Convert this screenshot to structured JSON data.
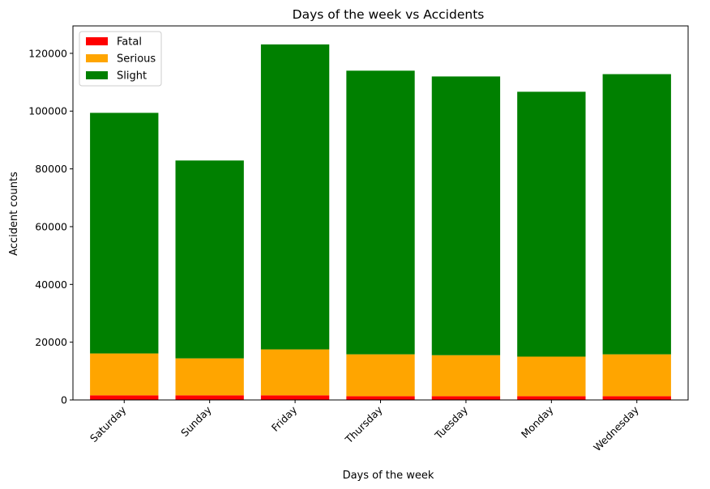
{
  "chart_data": {
    "type": "bar",
    "stacked": true,
    "title": "Days of the week vs Accidents",
    "xlabel": "Days of the week",
    "ylabel": "Accident counts",
    "categories": [
      "Saturday",
      "Sunday",
      "Friday",
      "Thursday",
      "Tuesday",
      "Monday",
      "Wednesday"
    ],
    "series": [
      {
        "name": "Fatal",
        "color": "#ff0000",
        "values": [
          1600,
          1600,
          1600,
          1300,
          1300,
          1300,
          1300
        ]
      },
      {
        "name": "Serious",
        "color": "#ffa500",
        "values": [
          14500,
          12800,
          15900,
          14500,
          14200,
          13700,
          14500
        ]
      },
      {
        "name": "Slight",
        "color": "#008000",
        "values": [
          83300,
          68500,
          105600,
          98200,
          96500,
          91700,
          97000
        ]
      }
    ],
    "ylim": [
      0,
      129500
    ],
    "yticks": [
      0,
      20000,
      40000,
      60000,
      80000,
      100000,
      120000
    ],
    "legend": "top-left",
    "grid": false
  }
}
